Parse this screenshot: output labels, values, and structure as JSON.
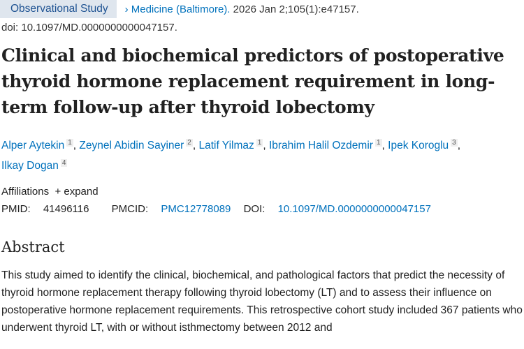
{
  "badge": "Observational Study",
  "citation": {
    "journal": "Medicine (Baltimore).",
    "rest": " 2026 Jan 2;105(1):e47157."
  },
  "doi_line": "doi: 10.1097/MD.0000000000047157.",
  "title": "Clinical and biochemical predictors of postoperative thyroid hormone replacement requirement in long-term follow-up after thyroid lobectomy",
  "authors": [
    {
      "name": "Alper Aytekin",
      "aff": "1"
    },
    {
      "name": "Zeynel Abidin Sayiner",
      "aff": "2"
    },
    {
      "name": "Latif Yilmaz",
      "aff": "1"
    },
    {
      "name": "Ibrahim Halil Ozdemir",
      "aff": "1"
    },
    {
      "name": "Ipek Koroglu",
      "aff": "3"
    },
    {
      "name": "Ilkay Dogan",
      "aff": "4"
    }
  ],
  "affiliations": {
    "label": "Affiliations",
    "expand": "+ expand"
  },
  "ids": {
    "pmid_label": "PMID:",
    "pmid": "41496116",
    "pmcid_label": "PMCID:",
    "pmcid": "PMC12778089",
    "doi_label": "DOI:",
    "doi": "10.1097/MD.0000000000047157"
  },
  "abstract": {
    "heading": "Abstract",
    "text": "This study aimed to identify the clinical, biochemical, and pathological factors that predict the necessity of thyroid hormone replacement therapy following thyroid lobectomy (LT) and to assess their influence on postoperative hormone replacement requirements. This retrospective cohort study included 367 patients who underwent thyroid LT, with or without isthmectomy between 2012 and"
  }
}
